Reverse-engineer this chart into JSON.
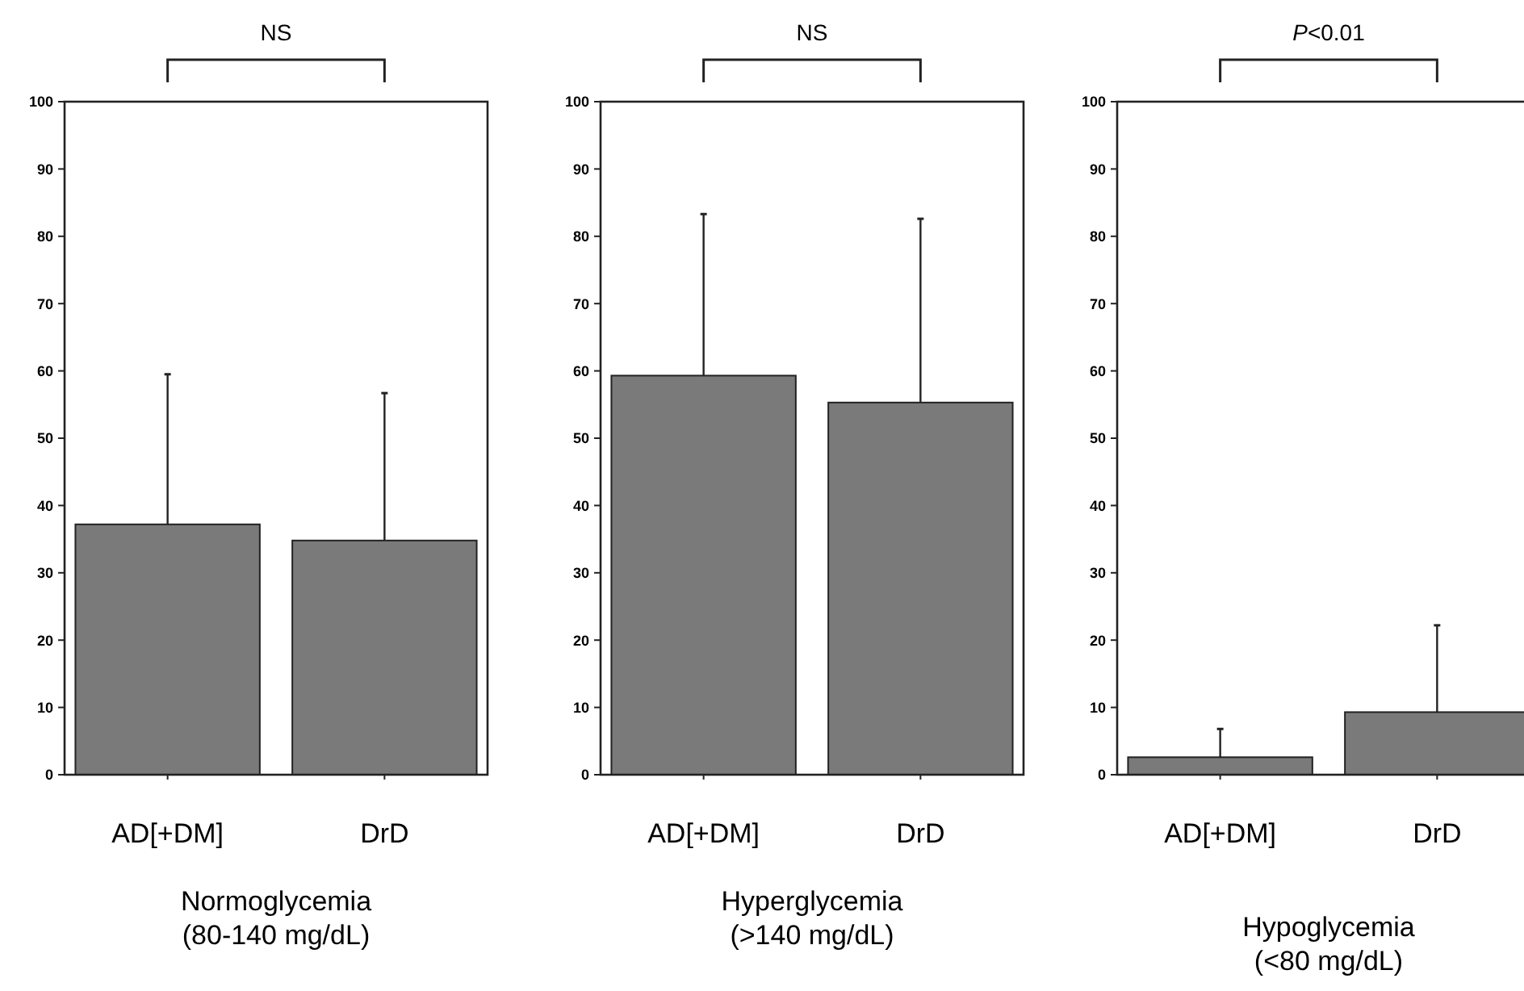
{
  "chart_data": [
    {
      "type": "bar",
      "xlabel": "Normoglycemia\n(80-140 mg/dL)",
      "categories": [
        "AD[+DM]",
        "DrD"
      ],
      "values": [
        37.2,
        34.8
      ],
      "errors": [
        [
          37.2,
          59.5
        ],
        [
          34.8,
          56.7
        ]
      ],
      "color": "#7a7a7a",
      "ylim": [
        0,
        100
      ],
      "yticks": [
        0,
        10,
        20,
        30,
        40,
        50,
        60,
        70,
        80,
        90,
        100
      ],
      "annotations": [
        "NS"
      ]
    },
    {
      "type": "bar",
      "xlabel": "Hyperglycemia\n(>140 mg/dL)",
      "categories": [
        "AD[+DM]",
        "DrD"
      ],
      "values": [
        59.3,
        55.3
      ],
      "errors": [
        [
          59.3,
          83.3
        ],
        [
          55.3,
          82.6
        ]
      ],
      "color": "#7a7a7a",
      "ylim": [
        0,
        100
      ],
      "yticks": [
        0,
        10,
        20,
        30,
        40,
        50,
        60,
        70,
        80,
        90,
        100
      ],
      "annotations": [
        "NS"
      ]
    },
    {
      "type": "bar",
      "xlabel": "Hypoglycemia\n(<80 mg/dL)",
      "categories": [
        "AD[+DM]",
        "DrD"
      ],
      "values": [
        2.6,
        9.3
      ],
      "errors": [
        [
          2.6,
          6.8
        ],
        [
          9.3,
          22.2
        ]
      ],
      "color": "#7a7a7a",
      "ylim": [
        0,
        100
      ],
      "yticks": [
        0,
        10,
        20,
        30,
        40,
        50,
        60,
        70,
        80,
        90,
        100
      ],
      "annotations": [
        "P<0.01"
      ]
    }
  ]
}
